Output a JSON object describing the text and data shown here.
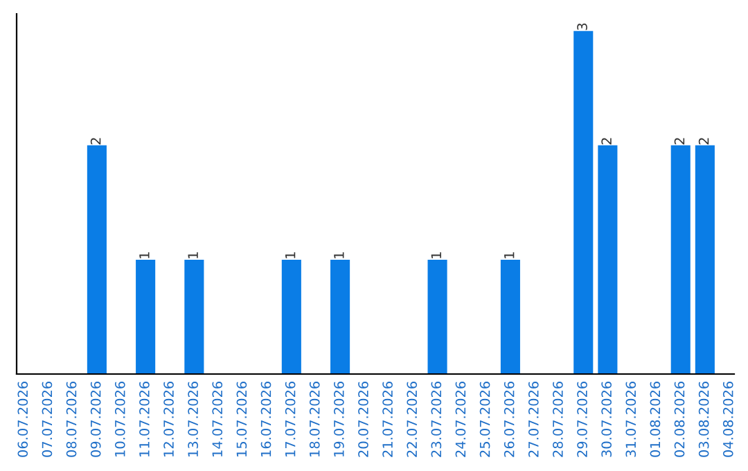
{
  "chart_data": {
    "type": "bar",
    "categories": [
      "06.07.2026",
      "07.07.2026",
      "08.07.2026",
      "09.07.2026",
      "10.07.2026",
      "11.07.2026",
      "12.07.2026",
      "13.07.2026",
      "14.07.2026",
      "15.07.2026",
      "16.07.2026",
      "17.07.2026",
      "18.07.2026",
      "19.07.2026",
      "20.07.2026",
      "21.07.2026",
      "22.07.2026",
      "23.07.2026",
      "24.07.2026",
      "25.07.2026",
      "26.07.2026",
      "27.07.2026",
      "28.07.2026",
      "29.07.2026",
      "30.07.2026",
      "31.07.2026",
      "01.08.2026",
      "02.08.2026",
      "03.08.2026",
      "04.08.2026"
    ],
    "values": [
      0,
      0,
      0,
      2,
      0,
      1,
      0,
      1,
      0,
      0,
      0,
      1,
      0,
      1,
      0,
      0,
      0,
      1,
      0,
      0,
      1,
      0,
      0,
      3,
      2,
      0,
      0,
      2,
      2,
      0
    ],
    "value_labels": [
      null,
      null,
      null,
      "2",
      null,
      "1",
      null,
      "1",
      null,
      null,
      null,
      "1",
      null,
      "1",
      null,
      null,
      null,
      "1",
      null,
      null,
      "1",
      null,
      null,
      "3",
      "2",
      null,
      null,
      "2",
      "2",
      null
    ],
    "color": "#0a7de6",
    "tick_labels": "x",
    "grid": false,
    "legend": false
  }
}
